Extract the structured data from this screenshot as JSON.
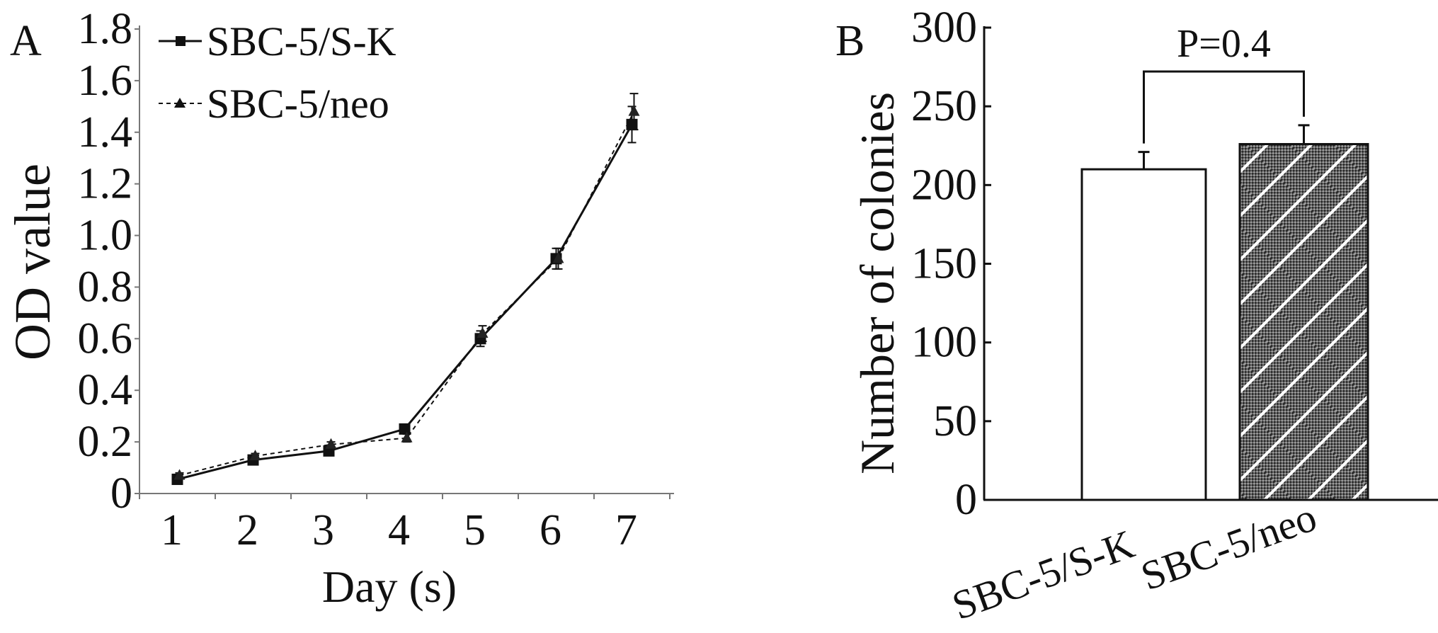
{
  "chart_data": [
    {
      "panel": "A",
      "type": "line",
      "title": "",
      "xlabel": "Day (s)",
      "ylabel": "OD value",
      "x": [
        1,
        2,
        3,
        4,
        5,
        6,
        7
      ],
      "x_tick_labels": [
        "1",
        "2",
        "3",
        "4",
        "5",
        "6",
        "7"
      ],
      "ylim": [
        0,
        1.8
      ],
      "y_ticks": [
        0,
        0.2,
        0.4,
        0.6,
        0.8,
        1.0,
        1.2,
        1.4,
        1.6,
        1.8
      ],
      "y_tick_labels": [
        "0",
        "0.2",
        "0.4",
        "0.6",
        "0.8",
        "1.0",
        "1.2",
        "1.4",
        "1.6",
        "1.8"
      ],
      "legend_position": "top-left",
      "grid": false,
      "series": [
        {
          "name": "SBC-5/S-K",
          "marker": "square",
          "line": "solid",
          "values": [
            0.055,
            0.13,
            0.165,
            0.25,
            0.6,
            0.91,
            1.43
          ],
          "errors": [
            0.01,
            0.01,
            0.015,
            0.01,
            0.03,
            0.04,
            0.07
          ]
        },
        {
          "name": "SBC-5/neo",
          "marker": "triangle",
          "line": "dashed",
          "values": [
            0.07,
            0.145,
            0.19,
            0.215,
            0.62,
            0.91,
            1.48
          ],
          "errors": [
            0.01,
            0.01,
            0.01,
            0.015,
            0.03,
            0.04,
            0.07
          ]
        }
      ]
    },
    {
      "panel": "B",
      "type": "bar",
      "title": "",
      "xlabel": "",
      "ylabel": "Number of colonies",
      "categories": [
        "SBC-5/S-K",
        "SBC-5/neo"
      ],
      "values": [
        210,
        226
      ],
      "errors": [
        11,
        12
      ],
      "ylim": [
        0,
        300
      ],
      "y_ticks": [
        0,
        50,
        100,
        150,
        200,
        250,
        300
      ],
      "y_tick_labels": [
        "0",
        "50",
        "100",
        "150",
        "200",
        "250",
        "300"
      ],
      "annotation": "P=0.4",
      "grid": false
    }
  ],
  "panel_labels": [
    "A",
    "B"
  ]
}
